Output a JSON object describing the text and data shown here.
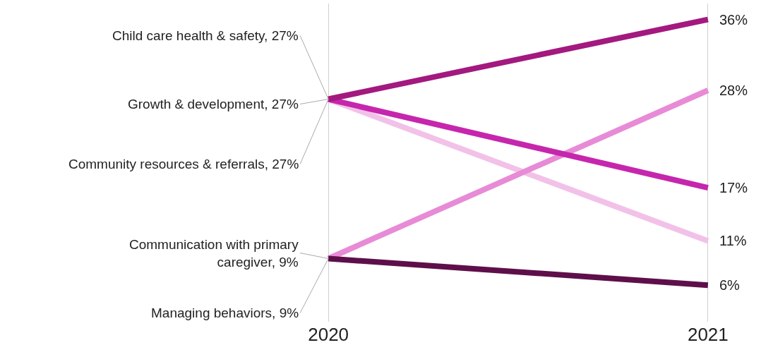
{
  "chart_data": {
    "type": "line",
    "categories": [
      "2020",
      "2021"
    ],
    "tick_labels": "x",
    "grid": "x",
    "marker": "none",
    "series": [
      {
        "name": "Community resources & referrals,",
        "color": "#f2c1e8",
        "values": [
          27,
          11
        ],
        "value_labels": [
          "27%",
          "11%"
        ]
      },
      {
        "name": "Communication with primary caregiver,",
        "color": "#e88bd6",
        "values": [
          9,
          28
        ],
        "value_labels": [
          "9%",
          "28%"
        ]
      },
      {
        "name": "Managing behaviors,",
        "color": "#5e0f4a",
        "values": [
          9,
          6
        ],
        "value_labels": [
          "9%",
          "6%"
        ]
      },
      {
        "name": "Growth & development,",
        "color": "#c626ad",
        "values": [
          27,
          17
        ],
        "value_labels": [
          "27%",
          "17%"
        ]
      },
      {
        "name": "Child care health & safety,",
        "color": "#a3197f",
        "values": [
          27,
          36
        ],
        "value_labels": [
          "27%",
          "36%"
        ]
      }
    ]
  }
}
